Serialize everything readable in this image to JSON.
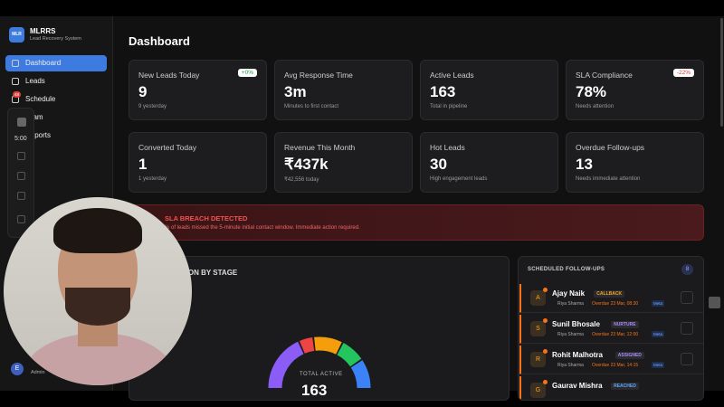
{
  "app": {
    "logo": "MLR",
    "name": "MLRRS",
    "subtitle": "Lead Recovery System"
  },
  "nav": [
    {
      "label": "Dashboard"
    },
    {
      "label": "Leads"
    },
    {
      "label": "Schedule",
      "badge": "48"
    },
    {
      "label": "Team"
    },
    {
      "label": "Reports"
    }
  ],
  "recorder": {
    "time": "5:00"
  },
  "user": {
    "initial": "E",
    "role": "Admin"
  },
  "page": {
    "title": "Dashboard"
  },
  "stats": [
    {
      "label": "New Leads Today",
      "value": "9",
      "sub": "9 yesterday",
      "badge": "+0%"
    },
    {
      "label": "Avg Response Time",
      "value": "3m",
      "sub": "Minutes to first contact"
    },
    {
      "label": "Active Leads",
      "value": "163",
      "sub": "Total in pipeline"
    },
    {
      "label": "SLA Compliance",
      "value": "78%",
      "sub": "Needs attention",
      "badge": "-22%"
    },
    {
      "label": "Converted Today",
      "value": "1",
      "sub": "1 yesterday"
    },
    {
      "label": "Revenue This Month",
      "value": "₹437k",
      "sub": "₹42,556 today"
    },
    {
      "label": "Hot Leads",
      "value": "30",
      "sub": "High engagement leads"
    },
    {
      "label": "Overdue Follow-ups",
      "value": "13",
      "sub": "Needs immediate attention"
    }
  ],
  "alert": {
    "title": "SLA BREACH DETECTED",
    "message": "% of leads missed the 5-minute initial contact window. Immediate action required."
  },
  "distribution": {
    "title": "DISTRIBUTION BY STAGE",
    "center_label": "TOTAL ACTIVE",
    "center_value": "163"
  },
  "followups": {
    "title": "SCHEDULED FOLLOW-UPS",
    "count": "8",
    "items": [
      {
        "initial": "A",
        "name": "Ajay Naik",
        "tag": "CALLBACK",
        "agent": "Riya Sharma",
        "due": "Overdue 23 Mar, 08:30",
        "source": "Meta"
      },
      {
        "initial": "S",
        "name": "Sunil Bhosale",
        "tag": "NURTURE",
        "agent": "Riya Sharma",
        "due": "Overdue 23 Mar, 12:00",
        "source": "Meta"
      },
      {
        "initial": "R",
        "name": "Rohit Malhotra",
        "tag": "ASSIGNED",
        "agent": "Riya Sharma",
        "due": "Overdue 23 Mar, 14:15",
        "source": "Meta"
      },
      {
        "initial": "G",
        "name": "Gaurav Mishra",
        "tag": "REACHED"
      }
    ]
  }
}
